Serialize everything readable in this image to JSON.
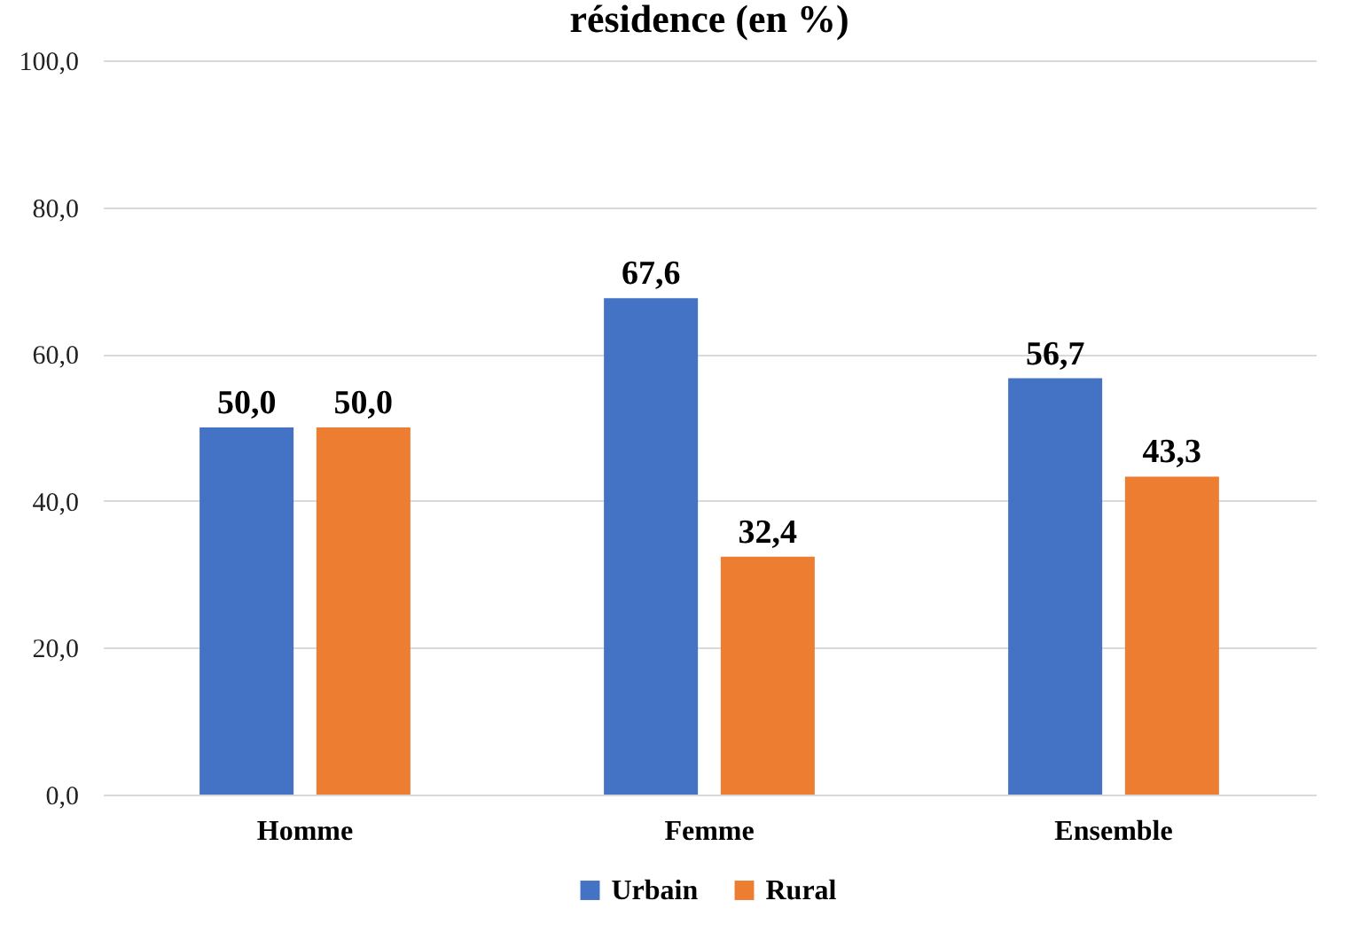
{
  "chart_data": {
    "type": "bar",
    "title": "résidence (en %)",
    "categories": [
      "Homme",
      "Femme",
      "Ensemble"
    ],
    "series": [
      {
        "name": "Urbain",
        "color": "#4472c4",
        "values": [
          50.0,
          67.6,
          56.7
        ],
        "value_labels": [
          "50,0",
          "67,6",
          "56,7"
        ]
      },
      {
        "name": "Rural",
        "color": "#ed7d31",
        "values": [
          50.0,
          32.4,
          43.3
        ],
        "value_labels": [
          "50,0",
          "32,4",
          "43,3"
        ]
      }
    ],
    "ylim": [
      0,
      100
    ],
    "yticks": [
      {
        "value": 0,
        "label": "0,0"
      },
      {
        "value": 20,
        "label": "20,0"
      },
      {
        "value": 40,
        "label": "40,0"
      },
      {
        "value": 60,
        "label": "60,0"
      },
      {
        "value": 80,
        "label": "80,0"
      },
      {
        "value": 100,
        "label": "100,0"
      }
    ],
    "grid": "y",
    "legend": "bottom"
  }
}
